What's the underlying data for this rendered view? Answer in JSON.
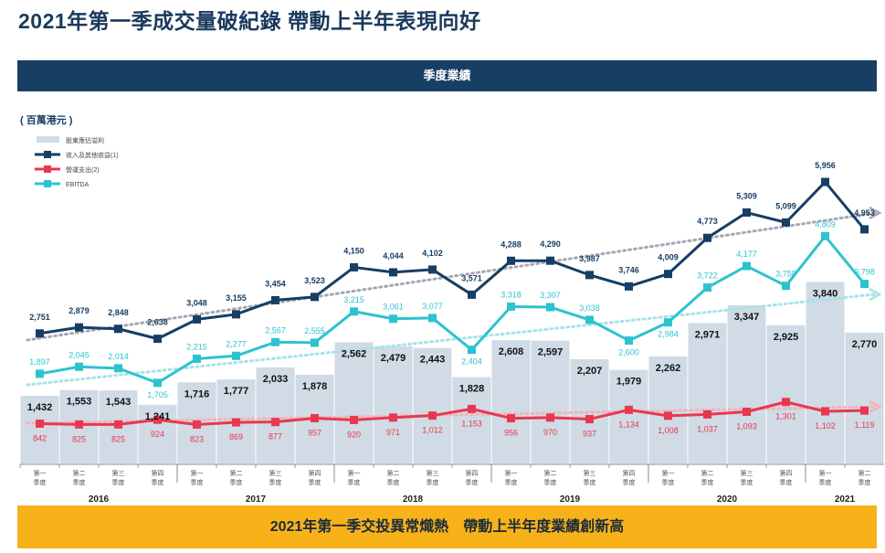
{
  "title": "2021年第一季成交量破紀錄 帶動上半年表現向好",
  "header": "季度業績",
  "footer": "2021年第一季交投異常熾熱　帶動上半年度業績創新高",
  "chart_data": {
    "type": "bar",
    "unit_label": "( 百萬港元 )",
    "categories": [
      [
        "第一",
        "季度"
      ],
      [
        "第二",
        "季度"
      ],
      [
        "第三",
        "季度"
      ],
      [
        "第四",
        "季度"
      ],
      [
        "第一",
        "季度"
      ],
      [
        "第二",
        "季度"
      ],
      [
        "第三",
        "季度"
      ],
      [
        "第四",
        "季度"
      ],
      [
        "第一",
        "季度"
      ],
      [
        "第二",
        "季度"
      ],
      [
        "第三",
        "季度"
      ],
      [
        "第四",
        "季度"
      ],
      [
        "第一",
        "季度"
      ],
      [
        "第二",
        "季度"
      ],
      [
        "第三",
        "季度"
      ],
      [
        "第四",
        "季度"
      ],
      [
        "第一",
        "季度"
      ],
      [
        "第二",
        "季度"
      ],
      [
        "第三",
        "季度"
      ],
      [
        "第四",
        "季度"
      ],
      [
        "第一",
        "季度"
      ],
      [
        "第二",
        "季度"
      ]
    ],
    "years": [
      {
        "label": "2016",
        "quarters": 4
      },
      {
        "label": "2017",
        "quarters": 4
      },
      {
        "label": "2018",
        "quarters": 4
      },
      {
        "label": "2019",
        "quarters": 4
      },
      {
        "label": "2020",
        "quarters": 4
      },
      {
        "label": "2021",
        "quarters": 2
      }
    ],
    "series": [
      {
        "name": "股東應佔溢利",
        "kind": "bar",
        "color": "#d0dbe5",
        "label_color": "#111111",
        "values": [
          1432,
          1553,
          1543,
          1241,
          1716,
          1777,
          2033,
          1878,
          2562,
          2479,
          2443,
          1828,
          2608,
          2597,
          2207,
          1979,
          2262,
          2971,
          3347,
          2925,
          3840,
          2770
        ],
        "labels": [
          "1,432",
          "1,553",
          "1,543",
          "1,241",
          "1,716",
          "1,777",
          "2,033",
          "1,878",
          "2,562",
          "2,479",
          "2,443",
          "1,828",
          "2,608",
          "2,597",
          "2,207",
          "1,979",
          "2,262",
          "2,971",
          "3,347",
          "2,925",
          "3,840",
          "2,770"
        ]
      },
      {
        "name": "收入及其他收益",
        "note": "(1)",
        "kind": "line",
        "color": "#173e63",
        "label_color": "#173e63",
        "trend_color": "#a9a6b4",
        "values": [
          2751,
          2879,
          2848,
          2638,
          3048,
          3155,
          3454,
          3523,
          4150,
          4044,
          4102,
          3571,
          4288,
          4290,
          3987,
          3746,
          4009,
          4773,
          5309,
          5099,
          5956,
          4953
        ],
        "labels": [
          "2,751",
          "2,879",
          "2,848",
          "2,638",
          "3,048",
          "3,155",
          "3,454",
          "3,523",
          "4,150",
          "4,044",
          "4,102",
          "3,571",
          "4,288",
          "4,290",
          "3,987",
          "3,746",
          "4,009",
          "4,773",
          "5,309",
          "5,099",
          "5,956",
          "4,953"
        ]
      },
      {
        "name": "營運支出",
        "note": "(2)",
        "kind": "line",
        "color": "#e8384f",
        "label_color": "#e8384f",
        "trend_color": "#f2b3bc",
        "values": [
          842,
          825,
          825,
          924,
          823,
          869,
          877,
          957,
          920,
          971,
          1012,
          1153,
          956,
          970,
          937,
          1134,
          1008,
          1037,
          1093,
          1301,
          1102,
          1119
        ],
        "labels": [
          "842",
          "825",
          "825",
          "924",
          "823",
          "869",
          "877",
          "957",
          "920",
          "971",
          "1,012",
          "1,153",
          "956",
          "970",
          "937",
          "1,134",
          "1,008",
          "1,037",
          "1,093",
          "1,301",
          "1,102",
          "1,119"
        ]
      },
      {
        "name": "EBITDA",
        "kind": "line",
        "color": "#2cc3cf",
        "label_color": "#2cc3cf",
        "trend_color": "#a8e3e8",
        "values": [
          1897,
          2045,
          2014,
          1705,
          2215,
          2277,
          2567,
          2555,
          3215,
          3061,
          3077,
          2404,
          3318,
          3307,
          3038,
          2600,
          2984,
          3722,
          4177,
          3758,
          4809,
          3798
        ],
        "labels": [
          "1,897",
          "2,045",
          "2,014",
          "1,705",
          "2,215",
          "2,277",
          "2,567",
          "2,555",
          "3,215",
          "3,061",
          "3,077",
          "2,404",
          "3,318",
          "3,307",
          "3,038",
          "2,600",
          "2,984",
          "3,722",
          "4,177",
          "3,758",
          "4,809",
          "3,798"
        ]
      }
    ],
    "ylim": [
      0,
      6500
    ],
    "legend": "top-left",
    "grid": false
  }
}
